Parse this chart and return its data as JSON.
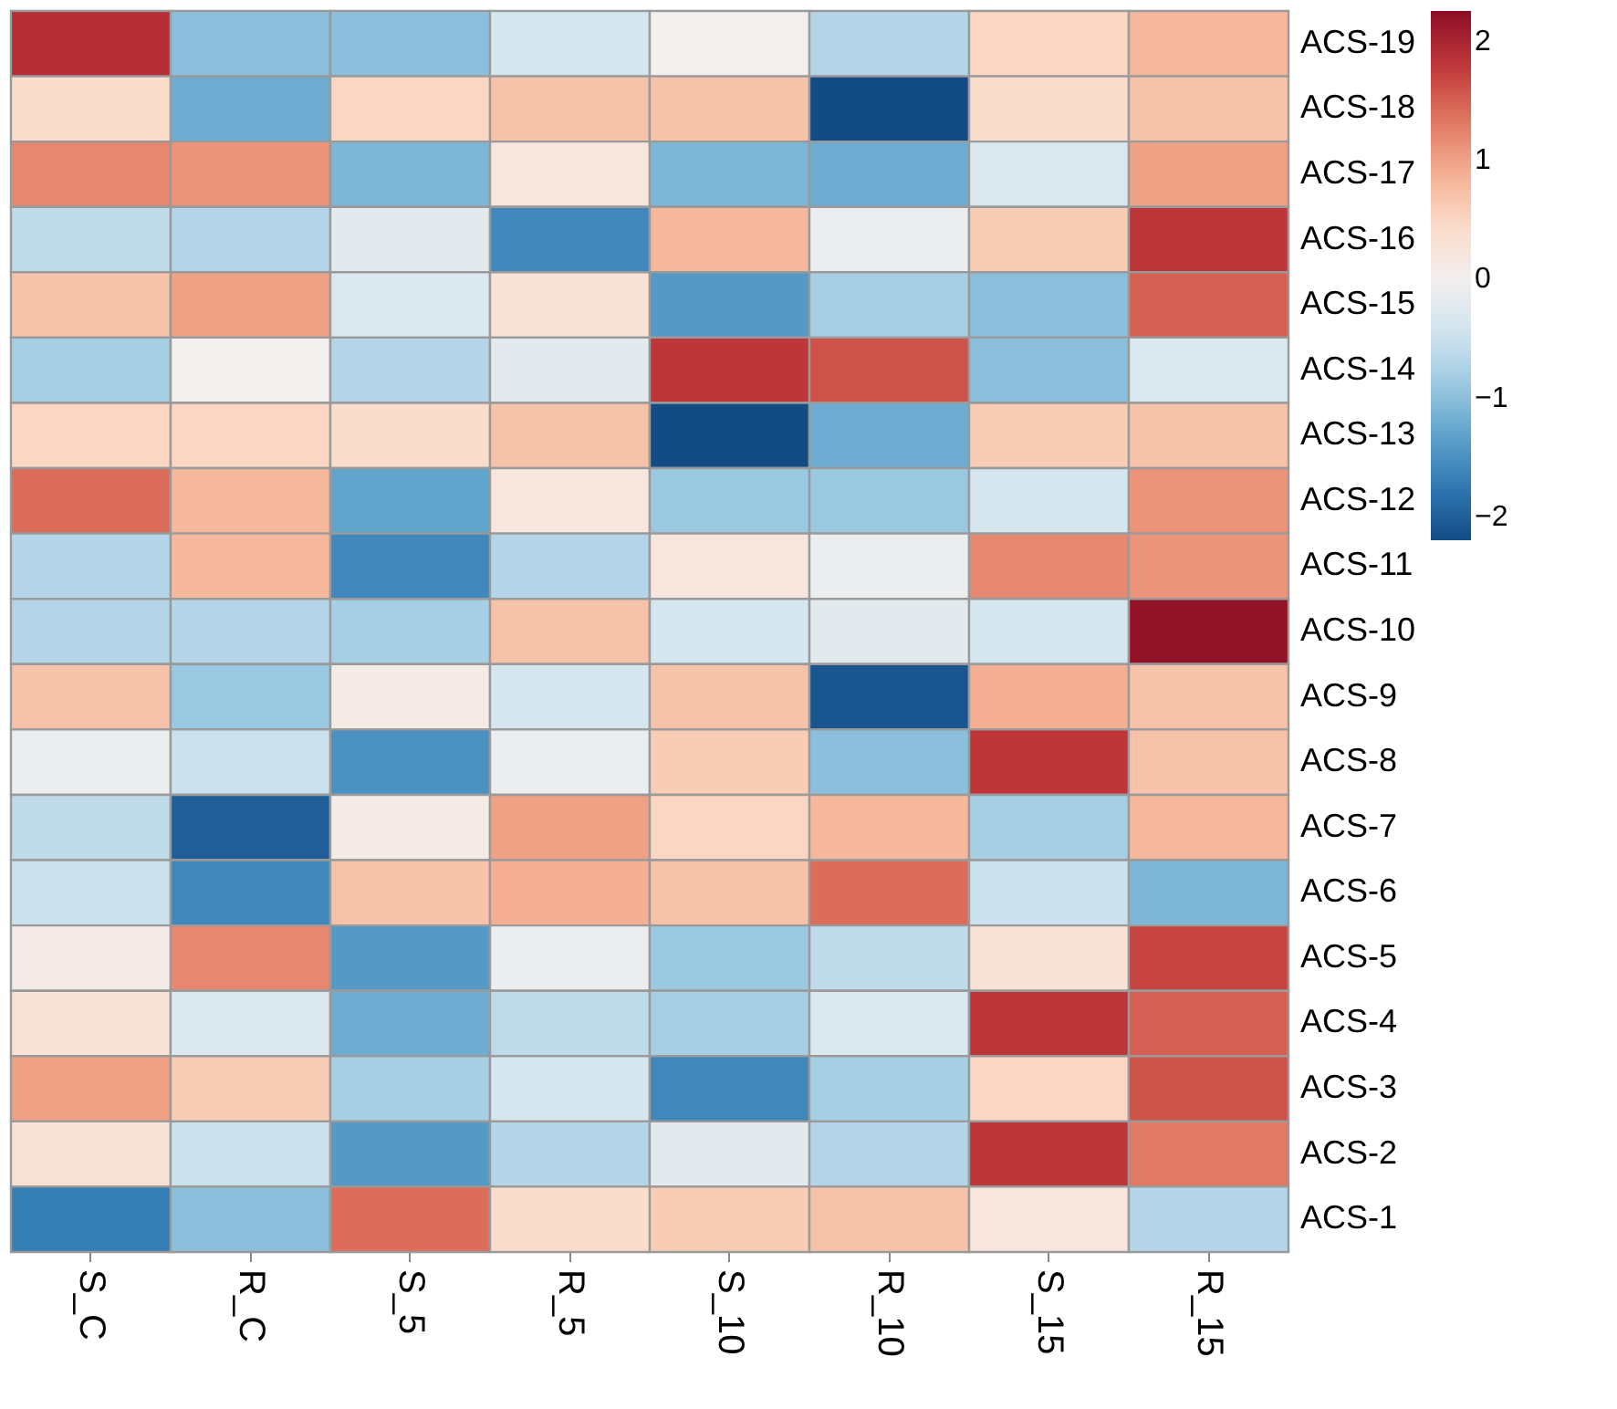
{
  "chart_data": {
    "type": "heatmap",
    "categories": [
      "S_C",
      "R_C",
      "S_5",
      "R_5",
      "S_10",
      "R_10",
      "S_15",
      "R_15"
    ],
    "y_categories": [
      "ACS-19",
      "ACS-18",
      "ACS-17",
      "ACS-16",
      "ACS-15",
      "ACS-14",
      "ACS-13",
      "ACS-12",
      "ACS-11",
      "ACS-10",
      "ACS-9",
      "ACS-8",
      "ACS-7",
      "ACS-6",
      "ACS-5",
      "ACS-4",
      "ACS-3",
      "ACS-2",
      "ACS-1"
    ],
    "cells": [
      [
        1.9,
        -1.0,
        -1.0,
        -0.4,
        0.0,
        -0.7,
        0.5,
        0.8
      ],
      [
        0.4,
        -1.2,
        0.5,
        0.7,
        0.7,
        -2.2,
        0.4,
        0.7
      ],
      [
        1.2,
        1.1,
        -1.1,
        0.2,
        -1.1,
        -1.2,
        -0.3,
        1.0
      ],
      [
        -0.6,
        -0.7,
        -0.2,
        -1.6,
        0.8,
        -0.1,
        0.6,
        1.8
      ],
      [
        0.7,
        1.0,
        -0.3,
        0.3,
        -1.4,
        -0.8,
        -1.0,
        1.5
      ],
      [
        -0.8,
        0.0,
        -0.7,
        -0.2,
        1.8,
        1.6,
        -1.0,
        -0.3
      ],
      [
        0.5,
        0.5,
        0.4,
        0.7,
        -2.2,
        -1.2,
        0.6,
        0.7
      ],
      [
        1.4,
        0.8,
        -1.3,
        0.2,
        -0.9,
        -0.9,
        -0.4,
        1.1
      ],
      [
        -0.7,
        0.8,
        -1.6,
        -0.7,
        0.2,
        -0.1,
        1.2,
        1.1
      ],
      [
        -0.7,
        -0.7,
        -0.8,
        0.7,
        -0.4,
        -0.2,
        -0.4,
        2.2
      ],
      [
        0.7,
        -0.9,
        0.1,
        -0.4,
        0.7,
        -2.1,
        0.9,
        0.7
      ],
      [
        -0.1,
        -0.5,
        -1.5,
        -0.1,
        0.6,
        -1.0,
        1.8,
        0.7
      ],
      [
        -0.6,
        -2.0,
        0.1,
        1.0,
        0.5,
        0.8,
        -0.8,
        0.8
      ],
      [
        -0.5,
        -1.6,
        0.7,
        0.9,
        0.7,
        1.4,
        -0.5,
        -1.1
      ],
      [
        0.1,
        1.2,
        -1.4,
        -0.1,
        -0.9,
        -0.6,
        0.3,
        1.7
      ],
      [
        0.3,
        -0.3,
        -1.2,
        -0.6,
        -0.8,
        -0.3,
        1.8,
        1.5
      ],
      [
        1.0,
        0.6,
        -0.8,
        -0.4,
        -1.6,
        -0.8,
        0.5,
        1.6
      ],
      [
        0.3,
        -0.5,
        -1.4,
        -0.7,
        -0.2,
        -0.7,
        1.8,
        1.3
      ],
      [
        -1.7,
        -1.0,
        1.4,
        0.4,
        0.6,
        0.7,
        0.2,
        -0.7
      ]
    ],
    "clim": [
      -2.2,
      2.25
    ],
    "cticks": [
      -2,
      -1,
      0,
      1,
      2
    ]
  }
}
